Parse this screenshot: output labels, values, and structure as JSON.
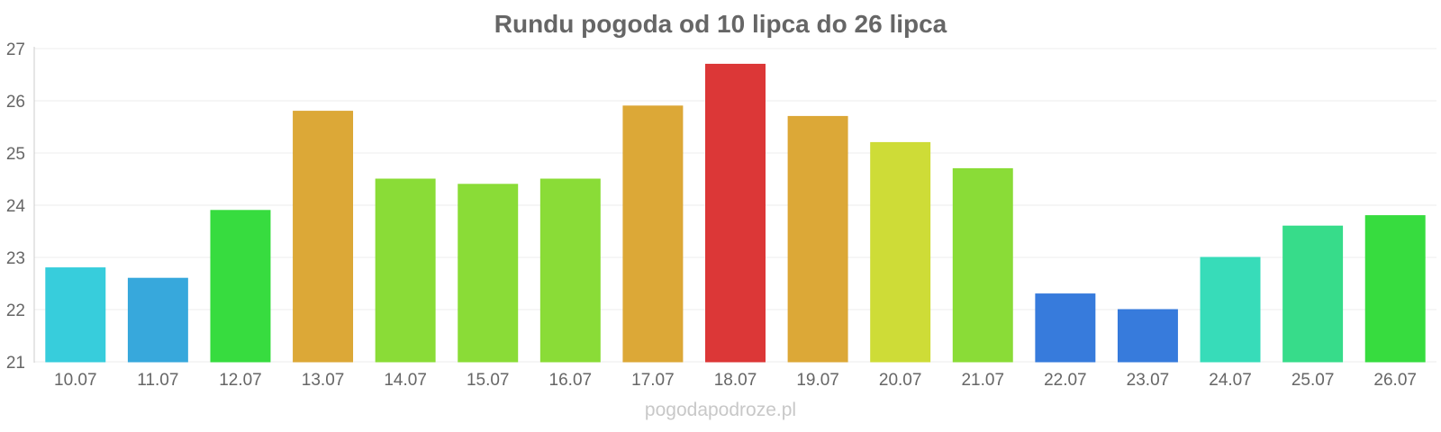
{
  "chart_data": {
    "type": "bar",
    "title": "Rundu pogoda od 10 lipca do 26 lipca",
    "xlabel": "",
    "ylabel": "",
    "ylim": [
      21,
      27
    ],
    "yticks": [
      21,
      22,
      23,
      24,
      25,
      26,
      27
    ],
    "grid": true,
    "legend": "none",
    "categories": [
      "10.07",
      "11.07",
      "12.07",
      "13.07",
      "14.07",
      "15.07",
      "16.07",
      "17.07",
      "18.07",
      "19.07",
      "20.07",
      "21.07",
      "22.07",
      "23.07",
      "24.07",
      "25.07",
      "26.07"
    ],
    "values": [
      22.8,
      22.6,
      23.9,
      25.8,
      24.5,
      24.4,
      24.5,
      25.9,
      26.7,
      25.7,
      25.2,
      24.7,
      22.3,
      22.0,
      23.0,
      23.6,
      23.8
    ],
    "colors": [
      "#33ccdb",
      "#33a6db",
      "#33db3b",
      "#dba633",
      "#88db33",
      "#88db33",
      "#88db33",
      "#dba633",
      "#db3333",
      "#dba633",
      "#cddb33",
      "#88db33",
      "#3378db",
      "#3378db",
      "#33dbb8",
      "#33db88",
      "#33db3b"
    ]
  },
  "watermark": "pogodapodroze.pl"
}
